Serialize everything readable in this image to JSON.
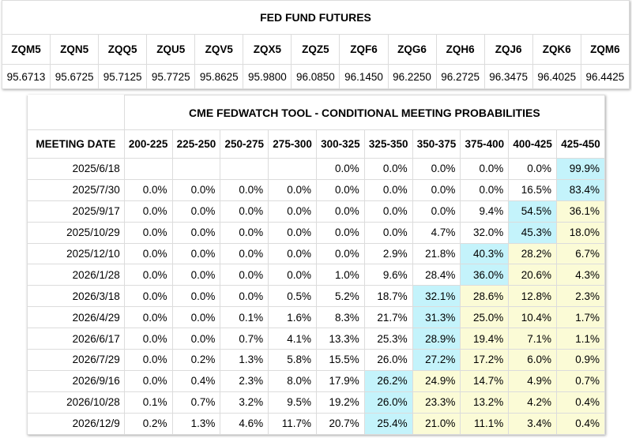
{
  "futures": {
    "title": "FED FUND FUTURES",
    "symbols": [
      "ZQM5",
      "ZQN5",
      "ZQQ5",
      "ZQU5",
      "ZQV5",
      "ZQX5",
      "ZQZ5",
      "ZQF6",
      "ZQG6",
      "ZQH6",
      "ZQJ6",
      "ZQK6",
      "ZQM6"
    ],
    "prices": [
      "95.6713",
      "95.6725",
      "95.7125",
      "95.7725",
      "95.8625",
      "95.9800",
      "96.0850",
      "96.1450",
      "96.2250",
      "96.2725",
      "96.3475",
      "96.4025",
      "96.4425"
    ]
  },
  "probabilities": {
    "title": "CME FEDWATCH TOOL - CONDITIONAL MEETING PROBABILITIES",
    "date_header": "MEETING DATE",
    "ranges": [
      "200-225",
      "225-250",
      "250-275",
      "275-300",
      "300-325",
      "325-350",
      "350-375",
      "375-400",
      "400-425",
      "425-450"
    ],
    "highlight_colors": {
      "blue": "#c4f3fb",
      "yellow": "#fbfbd6"
    },
    "rows": [
      {
        "date": "2025/6/18",
        "cells": [
          "",
          "",
          "",
          "",
          "0.0%",
          "0.0%",
          "0.0%",
          "0.0%",
          "0.0%",
          "99.9%"
        ],
        "hl": [
          "",
          "",
          "",
          "",
          "",
          "",
          "",
          "",
          "",
          "b"
        ]
      },
      {
        "date": "2025/7/30",
        "cells": [
          "0.0%",
          "0.0%",
          "0.0%",
          "0.0%",
          "0.0%",
          "0.0%",
          "0.0%",
          "0.0%",
          "16.5%",
          "83.4%"
        ],
        "hl": [
          "",
          "",
          "",
          "",
          "",
          "",
          "",
          "",
          "",
          "b"
        ]
      },
      {
        "date": "2025/9/17",
        "cells": [
          "0.0%",
          "0.0%",
          "0.0%",
          "0.0%",
          "0.0%",
          "0.0%",
          "0.0%",
          "9.4%",
          "54.5%",
          "36.1%"
        ],
        "hl": [
          "",
          "",
          "",
          "",
          "",
          "",
          "",
          "",
          "b",
          "y"
        ]
      },
      {
        "date": "2025/10/29",
        "cells": [
          "0.0%",
          "0.0%",
          "0.0%",
          "0.0%",
          "0.0%",
          "0.0%",
          "4.7%",
          "32.0%",
          "45.3%",
          "18.0%"
        ],
        "hl": [
          "",
          "",
          "",
          "",
          "",
          "",
          "",
          "",
          "b",
          "y"
        ]
      },
      {
        "date": "2025/12/10",
        "cells": [
          "0.0%",
          "0.0%",
          "0.0%",
          "0.0%",
          "0.0%",
          "2.9%",
          "21.8%",
          "40.3%",
          "28.2%",
          "6.7%"
        ],
        "hl": [
          "",
          "",
          "",
          "",
          "",
          "",
          "",
          "b",
          "y",
          "y"
        ]
      },
      {
        "date": "2026/1/28",
        "cells": [
          "0.0%",
          "0.0%",
          "0.0%",
          "0.0%",
          "1.0%",
          "9.6%",
          "28.4%",
          "36.0%",
          "20.6%",
          "4.3%"
        ],
        "hl": [
          "",
          "",
          "",
          "",
          "",
          "",
          "",
          "b",
          "y",
          "y"
        ]
      },
      {
        "date": "2026/3/18",
        "cells": [
          "0.0%",
          "0.0%",
          "0.0%",
          "0.5%",
          "5.2%",
          "18.7%",
          "32.1%",
          "28.6%",
          "12.8%",
          "2.3%"
        ],
        "hl": [
          "",
          "",
          "",
          "",
          "",
          "",
          "b",
          "y",
          "y",
          "y"
        ]
      },
      {
        "date": "2026/4/29",
        "cells": [
          "0.0%",
          "0.0%",
          "0.1%",
          "1.6%",
          "8.3%",
          "21.7%",
          "31.3%",
          "25.0%",
          "10.4%",
          "1.7%"
        ],
        "hl": [
          "",
          "",
          "",
          "",
          "",
          "",
          "b",
          "y",
          "y",
          "y"
        ]
      },
      {
        "date": "2026/6/17",
        "cells": [
          "0.0%",
          "0.0%",
          "0.7%",
          "4.1%",
          "13.3%",
          "25.3%",
          "28.9%",
          "19.4%",
          "7.1%",
          "1.1%"
        ],
        "hl": [
          "",
          "",
          "",
          "",
          "",
          "",
          "b",
          "y",
          "y",
          "y"
        ]
      },
      {
        "date": "2026/7/29",
        "cells": [
          "0.0%",
          "0.2%",
          "1.3%",
          "5.8%",
          "15.5%",
          "26.0%",
          "27.2%",
          "17.2%",
          "6.0%",
          "0.9%"
        ],
        "hl": [
          "",
          "",
          "",
          "",
          "",
          "",
          "b",
          "y",
          "y",
          "y"
        ]
      },
      {
        "date": "2026/9/16",
        "cells": [
          "0.0%",
          "0.4%",
          "2.3%",
          "8.0%",
          "17.9%",
          "26.2%",
          "24.9%",
          "14.7%",
          "4.9%",
          "0.7%"
        ],
        "hl": [
          "",
          "",
          "",
          "",
          "",
          "b",
          "y",
          "y",
          "y",
          "y"
        ]
      },
      {
        "date": "2026/10/28",
        "cells": [
          "0.1%",
          "0.7%",
          "3.2%",
          "9.5%",
          "19.2%",
          "26.0%",
          "23.3%",
          "13.2%",
          "4.2%",
          "0.4%"
        ],
        "hl": [
          "",
          "",
          "",
          "",
          "",
          "b",
          "y",
          "y",
          "y",
          "y"
        ]
      },
      {
        "date": "2026/12/9",
        "cells": [
          "0.2%",
          "1.3%",
          "4.6%",
          "11.7%",
          "20.7%",
          "25.4%",
          "21.0%",
          "11.1%",
          "3.4%",
          "0.4%"
        ],
        "hl": [
          "",
          "",
          "",
          "",
          "",
          "b",
          "y",
          "y",
          "y",
          "y"
        ]
      }
    ]
  }
}
